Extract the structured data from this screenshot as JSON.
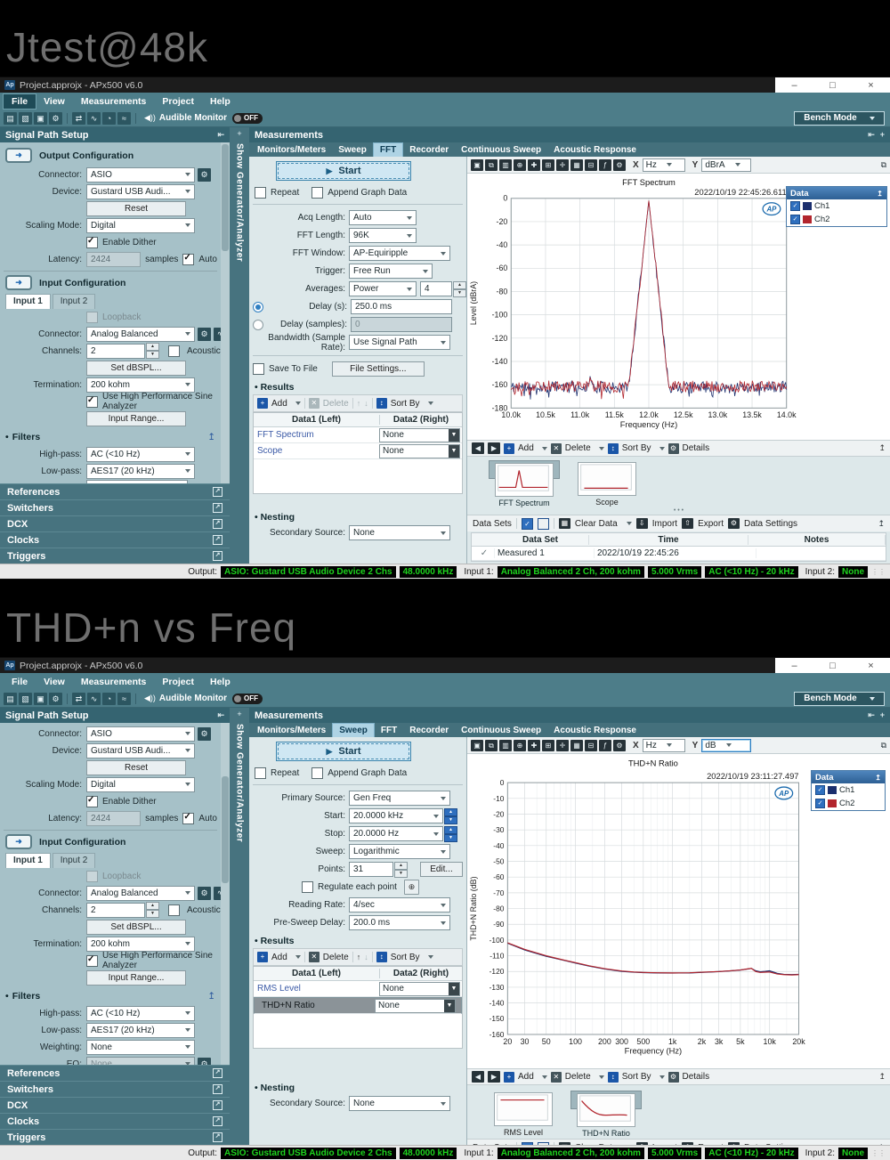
{
  "page": {
    "title1": "Jtest@48k",
    "title2": "THD+n vs Freq"
  },
  "chrome": {
    "window_title": "Project.approjx - APx500 v6.0",
    "app_icon": "Ap",
    "minimize": "–",
    "maximize": "□",
    "close": "×",
    "menus": [
      "File",
      "View",
      "Measurements",
      "Project",
      "Help"
    ],
    "toolbar_icons": [
      "new-icon",
      "open-icon",
      "save-icon",
      "settings-icon",
      "sep",
      "signal-path-icon",
      "meter-icon",
      "clock-icon",
      "sweep-icon",
      "sep"
    ],
    "audible": "Audible Monitor",
    "off": "OFF",
    "bench": "Bench Mode",
    "sidebar_header": "Signal Path Setup",
    "vertical_tab": "Show Generator/Analyzer",
    "meas_header": "Measurements",
    "tabs": [
      "Monitors/Meters",
      "Sweep",
      "FFT",
      "Recorder",
      "Continuous Sweep",
      "Acoustic Response"
    ],
    "start": "Start",
    "repeat": "Repeat",
    "append": "Append Graph Data",
    "results": "Results",
    "nesting": "Nesting",
    "secondary_source": "Secondary Source:",
    "none": "None",
    "results_cols": [
      "Data1 (Left)",
      "Data2 (Right)"
    ],
    "nav": {
      "add": "Add",
      "delete": "Delete",
      "sort": "Sort By",
      "details": "Details"
    },
    "dsbar": {
      "label": "Data Sets",
      "clear": "Clear Data",
      "import": "Import",
      "export": "Export",
      "settings": "Data Settings"
    },
    "accordion": [
      "References",
      "Switchers",
      "DCX",
      "Clocks",
      "Triggers"
    ],
    "axis_x": "X",
    "axis_y": "Y",
    "statusbar": [
      {
        "t": "label",
        "v": "Output:"
      },
      {
        "t": "badge",
        "v": "ASIO: Gustard USB Audio Device 2 Chs"
      },
      {
        "t": "badge",
        "v": "48.0000 kHz"
      },
      {
        "t": "label",
        "v": "Input 1:"
      },
      {
        "t": "badge",
        "v": "Analog Balanced 2 Ch, 200 kohm"
      },
      {
        "t": "badge",
        "v": "5.000 Vrms"
      },
      {
        "t": "badge",
        "v": "AC (<10 Hz) - 20 kHz"
      },
      {
        "t": "label",
        "v": "Input 2:"
      },
      {
        "t": "badge",
        "v": "None"
      }
    ]
  },
  "win1": {
    "file_menu_active": true,
    "active_tab": "FFT",
    "x_unit": "Hz",
    "y_unit": "dBrA",
    "y_unit_focus": false,
    "delete_enabled": false,
    "sidebar": [
      {
        "t": "sec",
        "title": "Output Configuration"
      },
      {
        "t": "row",
        "label": "Connector:",
        "value": "ASIO",
        "gear": true
      },
      {
        "t": "row",
        "label": "Device:",
        "value": "Gustard USB Audi..."
      },
      {
        "t": "btn",
        "text": "Reset"
      },
      {
        "t": "row",
        "label": "Scaling Mode:",
        "value": "Digital"
      },
      {
        "t": "check",
        "label": "Enable Dither",
        "ck": true
      },
      {
        "t": "latency",
        "label": "Latency:",
        "value": "2424",
        "suffix": "samples",
        "auto": "Auto"
      },
      {
        "t": "div"
      },
      {
        "t": "sec",
        "title": "Input Configuration"
      },
      {
        "t": "tabs",
        "tabs": [
          "Input 1",
          "Input 2"
        ],
        "active": 0
      },
      {
        "t": "check",
        "label": "Loopback",
        "dis": true
      },
      {
        "t": "row",
        "label": "Connector:",
        "value": "Analog Balanced",
        "gear": true,
        "extra": true
      },
      {
        "t": "spin",
        "label": "Channels:",
        "value": "2",
        "check": "Acoustic"
      },
      {
        "t": "btn",
        "text": "Set dBSPL..."
      },
      {
        "t": "row",
        "label": "Termination:",
        "value": "200 kohm"
      },
      {
        "t": "check",
        "label": "Use High Performance Sine Analyzer",
        "ck": true
      },
      {
        "t": "btn",
        "text": "Input Range..."
      },
      {
        "t": "filters",
        "title": "Filters"
      },
      {
        "t": "row",
        "label": "High-pass:",
        "value": "AC (<10 Hz)"
      },
      {
        "t": "row",
        "label": "Low-pass:",
        "value": "AES17 (20 kHz)"
      },
      {
        "t": "clip"
      }
    ],
    "meas_rows": [
      {
        "t": "row",
        "label": "Acq Length:",
        "value": "Auto",
        "w": 66
      },
      {
        "t": "row",
        "label": "FFT Length:",
        "value": "96K",
        "w": 66
      },
      {
        "t": "row",
        "label": "FFT Window:",
        "value": "AP-Equiripple",
        "w": 104
      },
      {
        "t": "row",
        "label": "Trigger:",
        "value": "Free Run",
        "w": 84
      },
      {
        "t": "rowspin",
        "label": "Averages:",
        "value": "Power",
        "w": 66,
        "spin": "4"
      },
      {
        "t": "radio",
        "label": "Delay (s):",
        "value": "250.0 ms",
        "sel": true
      },
      {
        "t": "radio",
        "label": "Delay (samples):",
        "value": "0",
        "sel": false,
        "dis": true
      },
      {
        "t": "row",
        "label": "Bandwidth (Sample Rate):",
        "value": "Use Signal Path",
        "w": 104
      },
      {
        "t": "hr"
      },
      {
        "t": "filerow",
        "check": "Save To File",
        "btn": "File Settings..."
      }
    ],
    "results_rows": [
      {
        "name": "FFT Spectrum",
        "right": "None",
        "sel": false
      },
      {
        "name": "Scope",
        "right": "None",
        "sel": false
      }
    ],
    "thumbs": [
      {
        "label": "FFT Spectrum",
        "sel": true,
        "sketch": "fft"
      },
      {
        "label": "Scope",
        "sel": false,
        "sketch": "scope"
      }
    ],
    "dataset_table": {
      "cols": [
        "Data Set",
        "Time",
        "Notes"
      ],
      "rows": [
        {
          "check": "✓",
          "name": "Measured 1",
          "time": "2022/10/19 22:45:26",
          "notes": ""
        }
      ]
    }
  },
  "win2": {
    "file_menu_active": false,
    "active_tab": "Sweep",
    "x_unit": "Hz",
    "y_unit": "dB",
    "y_unit_focus": true,
    "delete_enabled": true,
    "sidebar": [
      {
        "t": "row",
        "label": "Connector:",
        "value": "ASIO",
        "gear": true
      },
      {
        "t": "row",
        "label": "Device:",
        "value": "Gustard USB Audi..."
      },
      {
        "t": "btn",
        "text": "Reset"
      },
      {
        "t": "row",
        "label": "Scaling Mode:",
        "value": "Digital"
      },
      {
        "t": "check",
        "label": "Enable Dither",
        "ck": true
      },
      {
        "t": "latency",
        "label": "Latency:",
        "value": "2424",
        "suffix": "samples",
        "auto": "Auto"
      },
      {
        "t": "div"
      },
      {
        "t": "sec",
        "title": "Input Configuration"
      },
      {
        "t": "tabs",
        "tabs": [
          "Input 1",
          "Input 2"
        ],
        "active": 0
      },
      {
        "t": "check",
        "label": "Loopback",
        "dis": true
      },
      {
        "t": "row",
        "label": "Connector:",
        "value": "Analog Balanced",
        "gear": true,
        "extra": true
      },
      {
        "t": "spin",
        "label": "Channels:",
        "value": "2",
        "check": "Acoustic"
      },
      {
        "t": "btn",
        "text": "Set dBSPL..."
      },
      {
        "t": "row",
        "label": "Termination:",
        "value": "200 kohm"
      },
      {
        "t": "check",
        "label": "Use High Performance Sine Analyzer",
        "ck": true
      },
      {
        "t": "btn",
        "text": "Input Range..."
      },
      {
        "t": "filters",
        "title": "Filters"
      },
      {
        "t": "row",
        "label": "High-pass:",
        "value": "AC (<10 Hz)"
      },
      {
        "t": "row",
        "label": "Low-pass:",
        "value": "AES17 (20 kHz)"
      },
      {
        "t": "row",
        "label": "Weighting:",
        "value": "None"
      },
      {
        "t": "row",
        "label": "EQ:",
        "value": "None",
        "dis": true,
        "gear": true
      }
    ],
    "meas_rows": [
      {
        "t": "row",
        "label": "Primary Source:",
        "value": "Gen Freq",
        "w": 104
      },
      {
        "t": "bigspin",
        "label": "Start:",
        "value": "20.0000 kHz"
      },
      {
        "t": "bigspin",
        "label": "Stop:",
        "value": "20.0000 Hz"
      },
      {
        "t": "row",
        "label": "Sweep:",
        "value": "Logarithmic",
        "w": 104
      },
      {
        "t": "points",
        "label": "Points:",
        "value": "31",
        "btn": "Edit..."
      },
      {
        "t": "checkgear",
        "label": "Regulate each point"
      },
      {
        "t": "row",
        "label": "Reading Rate:",
        "value": "4/sec",
        "w": 104
      },
      {
        "t": "row",
        "label": "Pre-Sweep Delay:",
        "value": "200.0 ms",
        "w": 104
      }
    ],
    "results_rows": [
      {
        "name": "RMS Level",
        "right": "None",
        "sel": false
      },
      {
        "name": "THD+N Ratio",
        "right": "None",
        "sel": true
      }
    ],
    "thumbs": [
      {
        "label": "RMS Level",
        "sel": false,
        "sketch": "rms"
      },
      {
        "label": "THD+N Ratio",
        "sel": true,
        "sketch": "thd"
      }
    ]
  },
  "chart_data": [
    {
      "type": "line",
      "title": "FFT Spectrum",
      "timestamp": "2022/10/19 22:45:26.611",
      "xlabel": "Frequency (Hz)",
      "ylabel": "Level (dBrA)",
      "x_scale": "linear",
      "xlim": [
        10000,
        14000
      ],
      "ylim": [
        -180,
        0
      ],
      "y_tick_step": 20,
      "x_ticks": [
        {
          "v": 10000,
          "l": "10.0k"
        },
        {
          "v": 10500,
          "l": "10.5k"
        },
        {
          "v": 11000,
          "l": "11.0k"
        },
        {
          "v": 11500,
          "l": "11.5k"
        },
        {
          "v": 12000,
          "l": "12.0k"
        },
        {
          "v": 12500,
          "l": "12.5k"
        },
        {
          "v": 13000,
          "l": "13.0k"
        },
        {
          "v": 13500,
          "l": "13.5k"
        },
        {
          "v": 14000,
          "l": "14.0k"
        }
      ],
      "legend": {
        "title": "Data",
        "items": [
          {
            "name": "Ch1",
            "color": "#1b2f6e"
          },
          {
            "name": "Ch2",
            "color": "#b2252d"
          }
        ]
      },
      "series": [
        {
          "name": "Ch1",
          "color": "#1b2f6e",
          "gen": "fft",
          "seed": 11,
          "noise_floor": -162,
          "noise_amp": 5,
          "peak_x": 12000,
          "peak_y": -2,
          "skirt_db_per_hz": 0.55,
          "spur_x": 11150,
          "spur_y": -151
        },
        {
          "name": "Ch2",
          "color": "#b2252d",
          "gen": "fft",
          "seed": 29,
          "noise_floor": -161.5,
          "noise_amp": 5,
          "peak_x": 12000,
          "peak_y": -2,
          "skirt_db_per_hz": 0.55,
          "spur_x": 11150,
          "spur_y": -152
        }
      ]
    },
    {
      "type": "line",
      "title": "THD+N Ratio",
      "timestamp": "2022/10/19 23:11:27.497",
      "xlabel": "Frequency (Hz)",
      "ylabel": "THD+N Ratio (dB)",
      "x_scale": "log",
      "xlim": [
        20,
        20000
      ],
      "ylim": [
        -160,
        0
      ],
      "y_tick_step": 10,
      "x_ticks": [
        {
          "v": 20,
          "l": "20"
        },
        {
          "v": 30,
          "l": "30"
        },
        {
          "v": 50,
          "l": "50"
        },
        {
          "v": 100,
          "l": "100"
        },
        {
          "v": 200,
          "l": "200"
        },
        {
          "v": 300,
          "l": "300"
        },
        {
          "v": 500,
          "l": "500"
        },
        {
          "v": 1000,
          "l": "1k"
        },
        {
          "v": 2000,
          "l": "2k"
        },
        {
          "v": 3000,
          "l": "3k"
        },
        {
          "v": 5000,
          "l": "5k"
        },
        {
          "v": 10000,
          "l": "10k"
        },
        {
          "v": 20000,
          "l": "20k"
        }
      ],
      "x_minor": [
        40,
        60,
        70,
        80,
        90,
        150,
        400,
        600,
        700,
        800,
        900,
        1500,
        4000,
        6000,
        7000,
        8000,
        9000,
        15000
      ],
      "legend": {
        "title": "Data",
        "items": [
          {
            "name": "Ch1",
            "color": "#1b2f6e"
          },
          {
            "name": "Ch2",
            "color": "#b2252d"
          }
        ]
      },
      "series": [
        {
          "name": "Ch1",
          "color": "#1b2f6e",
          "gen": "points",
          "points": [
            [
              20,
              -102
            ],
            [
              30,
              -106.3
            ],
            [
              50,
              -110.3
            ],
            [
              70,
              -112.4
            ],
            [
              100,
              -114.6
            ],
            [
              140,
              -116.6
            ],
            [
              200,
              -118.4
            ],
            [
              300,
              -119.9
            ],
            [
              400,
              -120.5
            ],
            [
              500,
              -120.7
            ],
            [
              700,
              -120.9
            ],
            [
              1000,
              -121
            ],
            [
              1500,
              -120.9
            ],
            [
              2000,
              -120.6
            ],
            [
              3000,
              -120.1
            ],
            [
              4000,
              -119.6
            ],
            [
              5000,
              -119.1
            ],
            [
              6000,
              -118.4
            ],
            [
              6500,
              -118.1
            ],
            [
              7200,
              -119.6
            ],
            [
              8000,
              -120.2
            ],
            [
              9000,
              -119.9
            ],
            [
              10000,
              -119.6
            ],
            [
              12000,
              -121.2
            ],
            [
              14000,
              -121.8
            ],
            [
              17000,
              -122.0
            ],
            [
              20000,
              -121.8
            ]
          ]
        },
        {
          "name": "Ch2",
          "color": "#b2252d",
          "gen": "points",
          "points": [
            [
              20,
              -101.8
            ],
            [
              30,
              -106.0
            ],
            [
              50,
              -110.0
            ],
            [
              70,
              -112.2
            ],
            [
              100,
              -114.4
            ],
            [
              140,
              -116.4
            ],
            [
              200,
              -118.2
            ],
            [
              300,
              -119.7
            ],
            [
              400,
              -120.3
            ],
            [
              500,
              -120.6
            ],
            [
              700,
              -120.8
            ],
            [
              1000,
              -120.9
            ],
            [
              1500,
              -120.8
            ],
            [
              2000,
              -120.5
            ],
            [
              3000,
              -120.0
            ],
            [
              4000,
              -119.5
            ],
            [
              5000,
              -119.0
            ],
            [
              6000,
              -118.3
            ],
            [
              6500,
              -118.0
            ],
            [
              7200,
              -120.0
            ],
            [
              8000,
              -120.6
            ],
            [
              9000,
              -120.4
            ],
            [
              10000,
              -120.3
            ],
            [
              12000,
              -121.6
            ],
            [
              14000,
              -122.0
            ],
            [
              17000,
              -122.2
            ],
            [
              20000,
              -122.0
            ]
          ]
        }
      ]
    }
  ]
}
